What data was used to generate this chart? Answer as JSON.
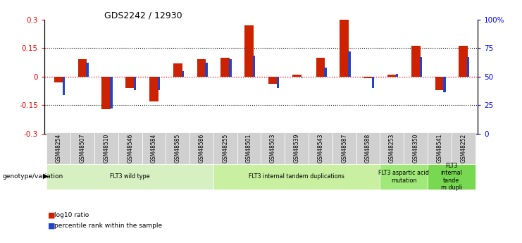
{
  "title": "GDS2242 / 12930",
  "samples": [
    "GSM48254",
    "GSM48507",
    "GSM48510",
    "GSM48546",
    "GSM48584",
    "GSM48585",
    "GSM48586",
    "GSM48255",
    "GSM48501",
    "GSM48503",
    "GSM48539",
    "GSM48543",
    "GSM48587",
    "GSM48588",
    "GSM48253",
    "GSM48350",
    "GSM48541",
    "GSM48252"
  ],
  "log10_ratio": [
    -0.03,
    0.09,
    -0.17,
    -0.06,
    -0.13,
    0.07,
    0.09,
    0.1,
    0.27,
    -0.04,
    0.01,
    0.1,
    0.3,
    -0.01,
    0.01,
    0.16,
    -0.07,
    0.16
  ],
  "percentile_rank": [
    34,
    62,
    22,
    38,
    38,
    55,
    62,
    65,
    68,
    40,
    49,
    58,
    72,
    40,
    52,
    67,
    36,
    67
  ],
  "groups": [
    {
      "label": "FLT3 wild type",
      "start": 0,
      "end": 7,
      "color": "#d6f0c2"
    },
    {
      "label": "FLT3 internal tandem duplications",
      "start": 7,
      "end": 14,
      "color": "#c8f0a0"
    },
    {
      "label": "FLT3 aspartic acid\nmutation",
      "start": 14,
      "end": 16,
      "color": "#a0e878"
    },
    {
      "label": "FLT3\ninternal\ntande\nm dupli",
      "start": 16,
      "end": 18,
      "color": "#78d850"
    }
  ],
  "bar_color_red": "#cc2200",
  "bar_color_blue": "#2244cc",
  "ylim_left": [
    -0.3,
    0.3
  ],
  "ylim_right": [
    0,
    100
  ],
  "yticks_left": [
    -0.3,
    -0.15,
    0.0,
    0.15,
    0.3
  ],
  "ytick_labels_left": [
    "-0.3",
    "-0.15",
    "0",
    "0.15",
    "0.3"
  ],
  "yticks_right": [
    0,
    25,
    50,
    75,
    100
  ],
  "ytick_labels_right": [
    "0",
    "25",
    "50",
    "75",
    "100%"
  ],
  "background_color": "#ffffff"
}
